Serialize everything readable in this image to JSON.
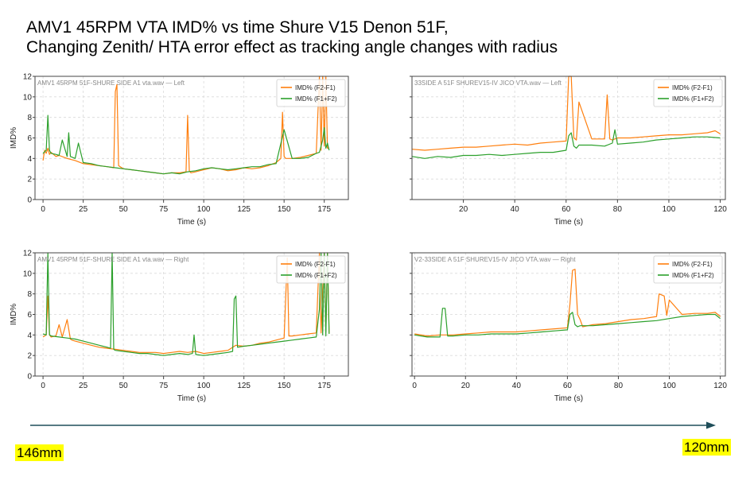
{
  "title": "AMV1 45RPM   VTA IMD% vs time Shure V15 Denon 51F,\nChanging Zenith/ HTA error effect as  tracking angle changes with radius",
  "colors": {
    "f2_f1": "#ff7f0e",
    "f1_f2": "#2ca02c",
    "arrow": "#1f4e5a",
    "highlight": "#ffff00"
  },
  "radius_start": "146mm",
  "radius_end": "120mm",
  "chart_data": [
    {
      "type": "line",
      "title": "AMV1 45RPM 51F-SHURE SIDE A1 vta.wav — Left",
      "xlabel": "Time (s)",
      "ylabel": "IMD%",
      "xlim": [
        -5,
        190
      ],
      "ylim": [
        0,
        12
      ],
      "xticks": [
        0,
        25,
        50,
        75,
        100,
        125,
        150,
        175
      ],
      "yticks": [
        0,
        2,
        4,
        6,
        8,
        10,
        12
      ],
      "show_ylabels": true,
      "legend": "top-right",
      "series": [
        {
          "name": "IMD% (F2-F1)",
          "color": "#ff7f0e",
          "x": [
            0,
            1,
            2,
            3,
            4,
            5,
            8,
            10,
            15,
            20,
            25,
            30,
            35,
            40,
            44,
            45,
            46,
            47,
            48,
            50,
            55,
            60,
            65,
            70,
            75,
            80,
            85,
            89,
            90,
            91,
            92,
            95,
            100,
            105,
            110,
            115,
            120,
            125,
            130,
            135,
            140,
            145,
            148,
            149,
            150,
            151,
            155,
            160,
            165,
            170,
            172,
            173,
            174,
            175,
            176,
            177,
            178
          ],
          "y": [
            3.8,
            4.8,
            4.5,
            5.0,
            4.4,
            4.6,
            4.2,
            4.3,
            4.0,
            3.8,
            3.5,
            3.4,
            3.3,
            3.2,
            3.1,
            10.5,
            11.2,
            3.3,
            3.2,
            3.0,
            2.9,
            2.8,
            2.7,
            2.6,
            2.5,
            2.6,
            2.6,
            2.7,
            8.2,
            2.8,
            2.6,
            2.7,
            2.9,
            3.1,
            3.0,
            2.8,
            2.9,
            3.1,
            3.0,
            3.1,
            3.3,
            3.6,
            4.0,
            8.5,
            4.2,
            4.0,
            4.0,
            4.1,
            4.3,
            4.5,
            12,
            4.8,
            12,
            5.2,
            12,
            5.0,
            5.0
          ]
        },
        {
          "name": "IMD% (F1+F2)",
          "color": "#2ca02c",
          "x": [
            0,
            2,
            3,
            4,
            5,
            8,
            10,
            12,
            15,
            16,
            17,
            20,
            22,
            25,
            30,
            35,
            40,
            45,
            50,
            55,
            60,
            65,
            70,
            75,
            80,
            85,
            90,
            95,
            100,
            105,
            110,
            115,
            120,
            125,
            130,
            135,
            140,
            145,
            150,
            155,
            160,
            165,
            170,
            172,
            174,
            175,
            176,
            177,
            178
          ],
          "y": [
            4.5,
            4.8,
            8.2,
            4.8,
            4.5,
            4.4,
            4.3,
            5.8,
            4.2,
            6.5,
            4.2,
            4.0,
            5.5,
            3.6,
            3.5,
            3.3,
            3.2,
            3.1,
            3.0,
            2.9,
            2.8,
            2.7,
            2.6,
            2.5,
            2.6,
            2.5,
            2.7,
            2.8,
            3.0,
            3.1,
            3.0,
            2.9,
            3.0,
            3.1,
            3.2,
            3.2,
            3.4,
            3.5,
            6.8,
            4.0,
            4.0,
            4.1,
            4.5,
            4.6,
            5.8,
            7.0,
            5.0,
            5.5,
            4.8
          ]
        }
      ]
    },
    {
      "type": "line",
      "title": "33SIDE A 51F SHUREV15-IV JICO VTA.wav — Left",
      "xlabel": "Time (s)",
      "ylabel": "",
      "xlim": [
        0,
        122
      ],
      "ylim": [
        0,
        12
      ],
      "xticks": [
        20,
        40,
        60,
        80,
        100,
        120
      ],
      "yticks": [
        0,
        2,
        4,
        6,
        8,
        10,
        12
      ],
      "show_ylabels": false,
      "legend": "top-right",
      "series": [
        {
          "name": "IMD% (F2-F1)",
          "color": "#ff7f0e",
          "x": [
            0,
            5,
            10,
            15,
            20,
            25,
            30,
            35,
            40,
            45,
            50,
            55,
            60,
            61,
            62,
            63,
            64,
            65,
            70,
            75,
            76,
            77,
            78,
            80,
            85,
            90,
            95,
            100,
            105,
            110,
            115,
            118,
            120
          ],
          "y": [
            4.9,
            4.8,
            4.9,
            5.0,
            5.1,
            5.1,
            5.2,
            5.3,
            5.4,
            5.3,
            5.5,
            5.6,
            5.7,
            12,
            12,
            6.0,
            5.8,
            9.5,
            5.9,
            5.9,
            10.2,
            5.9,
            5.8,
            6.0,
            6.0,
            6.1,
            6.2,
            6.3,
            6.3,
            6.4,
            6.5,
            6.7,
            6.4
          ]
        },
        {
          "name": "IMD% (F1+F2)",
          "color": "#2ca02c",
          "x": [
            0,
            5,
            10,
            15,
            20,
            25,
            30,
            35,
            40,
            45,
            50,
            55,
            60,
            61,
            62,
            63,
            64,
            65,
            70,
            75,
            78,
            79,
            80,
            85,
            90,
            95,
            100,
            105,
            110,
            115,
            120
          ],
          "y": [
            4.2,
            4.0,
            4.2,
            4.1,
            4.3,
            4.3,
            4.4,
            4.3,
            4.4,
            4.5,
            4.6,
            4.6,
            4.8,
            6.2,
            6.5,
            5.2,
            5.0,
            5.3,
            5.3,
            5.2,
            5.5,
            6.8,
            5.4,
            5.5,
            5.6,
            5.8,
            5.9,
            6.0,
            6.1,
            6.1,
            6.0
          ]
        }
      ]
    },
    {
      "type": "line",
      "title": "AMV1 45RPM 51F-SHURE SIDE A1 vta.wav — Right",
      "xlabel": "Time (s)",
      "ylabel": "IMD%",
      "xlim": [
        -5,
        190
      ],
      "ylim": [
        0,
        12
      ],
      "xticks": [
        0,
        25,
        50,
        75,
        100,
        125,
        150,
        175
      ],
      "yticks": [
        0,
        2,
        4,
        6,
        8,
        10,
        12
      ],
      "show_ylabels": true,
      "legend": "top-right",
      "series": [
        {
          "name": "IMD% (F2-F1)",
          "color": "#ff7f0e",
          "x": [
            0,
            2,
            3,
            4,
            5,
            8,
            10,
            12,
            15,
            17,
            18,
            20,
            25,
            30,
            35,
            40,
            45,
            50,
            55,
            60,
            65,
            70,
            75,
            80,
            85,
            90,
            95,
            100,
            105,
            110,
            115,
            120,
            125,
            130,
            135,
            140,
            145,
            150,
            152,
            153,
            155,
            160,
            165,
            170,
            172,
            173,
            175,
            176,
            177,
            178
          ],
          "y": [
            3.8,
            4.0,
            7.8,
            4.0,
            3.8,
            3.9,
            5.0,
            3.8,
            5.5,
            3.6,
            3.5,
            3.4,
            3.2,
            3.0,
            2.8,
            2.7,
            2.6,
            2.5,
            2.4,
            2.3,
            2.3,
            2.3,
            2.2,
            2.3,
            2.4,
            2.3,
            2.4,
            2.2,
            2.3,
            2.4,
            2.5,
            3.0,
            2.9,
            3.0,
            3.2,
            3.3,
            3.5,
            3.7,
            11.5,
            3.9,
            3.9,
            4.0,
            4.1,
            4.2,
            12,
            4.2,
            12,
            4.3,
            12,
            4.2
          ]
        },
        {
          "name": "IMD% (F1+F2)",
          "color": "#2ca02c",
          "x": [
            0,
            2,
            3,
            4,
            5,
            10,
            15,
            20,
            25,
            30,
            35,
            40,
            42,
            43,
            44,
            45,
            50,
            55,
            60,
            65,
            70,
            75,
            80,
            85,
            90,
            93,
            94,
            95,
            100,
            105,
            110,
            115,
            118,
            119,
            120,
            121,
            125,
            130,
            135,
            140,
            145,
            150,
            155,
            160,
            165,
            170,
            172,
            173,
            174,
            175,
            176,
            177,
            178
          ],
          "y": [
            4.1,
            4.0,
            12,
            4.0,
            3.9,
            3.8,
            3.7,
            3.6,
            3.4,
            3.2,
            3.0,
            2.8,
            2.7,
            12,
            2.6,
            2.5,
            2.4,
            2.3,
            2.2,
            2.2,
            2.1,
            2.0,
            2.1,
            2.2,
            2.1,
            2.2,
            4.0,
            2.1,
            2.0,
            2.1,
            2.2,
            2.3,
            2.4,
            7.5,
            7.8,
            2.8,
            2.9,
            3.0,
            3.1,
            3.2,
            3.3,
            3.4,
            3.5,
            3.6,
            3.7,
            3.8,
            6.5,
            12,
            4.0,
            12,
            3.9,
            12,
            4.1
          ]
        }
      ]
    },
    {
      "type": "line",
      "title": "V2-33SIDE A 51F SHUREV15-IV JICO VTA.wav — Right",
      "xlabel": "Time (s)",
      "ylabel": "",
      "xlim": [
        -1,
        122
      ],
      "ylim": [
        0,
        12
      ],
      "xticks": [
        0,
        20,
        40,
        60,
        80,
        100,
        120
      ],
      "yticks": [
        0,
        2,
        4,
        6,
        8,
        10,
        12
      ],
      "show_ylabels": false,
      "legend": "top-right",
      "series": [
        {
          "name": "IMD% (F2-F1)",
          "color": "#ff7f0e",
          "x": [
            0,
            5,
            10,
            15,
            20,
            25,
            30,
            35,
            40,
            45,
            50,
            55,
            60,
            61,
            62,
            63,
            64,
            65,
            66,
            70,
            75,
            80,
            85,
            90,
            95,
            96,
            98,
            99,
            100,
            105,
            110,
            115,
            118,
            120
          ],
          "y": [
            4.1,
            3.9,
            4.0,
            4.0,
            4.1,
            4.2,
            4.3,
            4.3,
            4.3,
            4.4,
            4.5,
            4.6,
            4.7,
            7.0,
            10.3,
            10.4,
            6.0,
            5.5,
            4.8,
            5.0,
            5.1,
            5.3,
            5.5,
            5.6,
            5.8,
            8.0,
            7.8,
            5.9,
            7.4,
            6.0,
            6.1,
            6.1,
            6.2,
            5.8
          ]
        },
        {
          "name": "IMD% (F1+F2)",
          "color": "#2ca02c",
          "x": [
            0,
            5,
            10,
            11,
            12,
            13,
            15,
            20,
            25,
            30,
            35,
            40,
            45,
            50,
            55,
            60,
            61,
            62,
            63,
            64,
            65,
            70,
            75,
            80,
            85,
            90,
            95,
            100,
            105,
            110,
            115,
            118,
            120
          ],
          "y": [
            4.0,
            3.8,
            3.8,
            6.6,
            6.6,
            3.9,
            3.9,
            4.0,
            4.0,
            4.1,
            4.1,
            4.1,
            4.2,
            4.3,
            4.4,
            4.5,
            6.0,
            6.2,
            5.0,
            4.8,
            4.9,
            4.9,
            5.0,
            5.1,
            5.2,
            5.3,
            5.4,
            5.6,
            5.8,
            5.9,
            6.0,
            6.0,
            5.6
          ]
        }
      ]
    }
  ]
}
